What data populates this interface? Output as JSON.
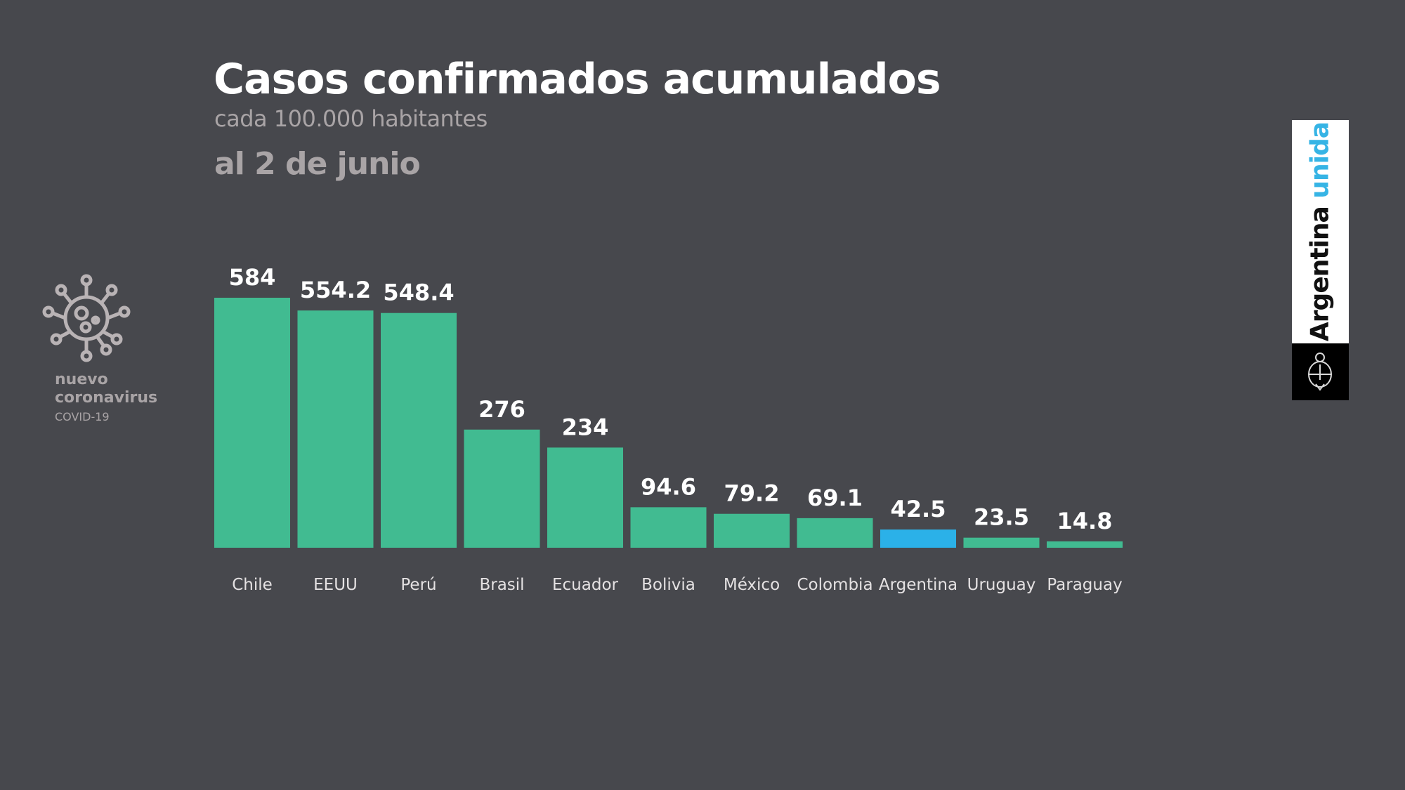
{
  "header": {
    "title": "Casos confirmados acumulados",
    "subtitle": "cada 100.000 habitantes",
    "date": "al 2 de junio"
  },
  "badge": {
    "icon": "virus-icon",
    "line1": "nuevo",
    "line2": "coronavirus",
    "line3": "COVID-19"
  },
  "logo": {
    "word1": "Argentina",
    "word2": "unida",
    "emblem": "coat-of-arms-icon"
  },
  "colors": {
    "background": "#47484d",
    "bar": "#41bb91",
    "highlight": "#2bb1e8",
    "value_label": "#ffffff",
    "category_label": "#e4e1e2"
  },
  "chart_data": {
    "type": "bar",
    "title": "Casos confirmados acumulados",
    "subtitle": "cada 100.000 habitantes — al 2 de junio",
    "xlabel": "",
    "ylabel": "",
    "categories": [
      "Chile",
      "EEUU",
      "Perú",
      "Brasil",
      "Ecuador",
      "Bolivia",
      "México",
      "Colombia",
      "Argentina",
      "Uruguay",
      "Paraguay"
    ],
    "values": [
      584,
      554.2,
      548.4,
      276,
      234,
      94.6,
      79.2,
      69.1,
      42.5,
      23.5,
      14.8
    ],
    "value_labels": [
      "584",
      "554.2",
      "548.4",
      "276",
      "234",
      "94.6",
      "79.2",
      "69.1",
      "42.5",
      "23.5",
      "14.8"
    ],
    "highlight": "Argentina",
    "ylim": [
      0,
      584
    ],
    "grid": false,
    "legend": "none"
  }
}
